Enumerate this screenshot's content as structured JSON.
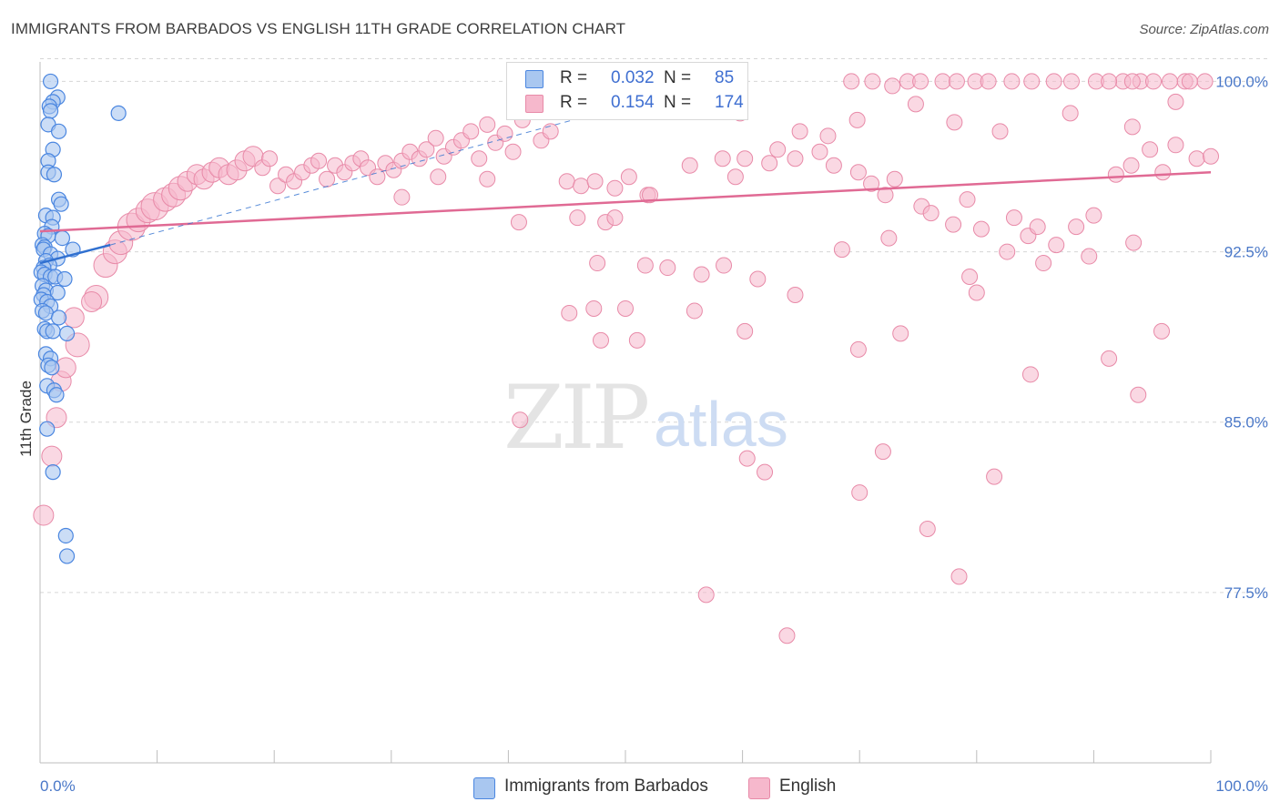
{
  "title": "IMMIGRANTS FROM BARBADOS VS ENGLISH 11TH GRADE CORRELATION CHART",
  "source": "Source: ZipAtlas.com",
  "watermark": {
    "zip": "ZIP",
    "atlas": "atlas"
  },
  "legend_top": {
    "rows": [
      {
        "r_label": "R =",
        "r_value": "0.032",
        "n_label": "N =",
        "n_value": "85"
      },
      {
        "r_label": "R =",
        "r_value": "0.154",
        "n_label": "N =",
        "n_value": "174"
      }
    ]
  },
  "legend_bottom": {
    "series1": "Immigrants from Barbados",
    "series2": "English"
  },
  "colors": {
    "blue_fill": "#a9c7f0",
    "blue_edge": "#4a86e0",
    "blue_line": "#3070d0",
    "pink_fill": "#f6b8cc",
    "pink_edge": "#e88aa8",
    "pink_line": "#e06a94",
    "tick_text": "#4a78c8",
    "grid": "#d6d6d6"
  },
  "chart_data": {
    "type": "scatter",
    "title": "IMMIGRANTS FROM BARBADOS VS ENGLISH 11TH GRADE CORRELATION CHART",
    "xlabel": "",
    "ylabel": "11th Grade",
    "xlim": [
      0,
      100
    ],
    "ylim": [
      70,
      101.5
    ],
    "x_tick_labels": [
      "0.0%",
      "100.0%"
    ],
    "y_ticks": [
      77.5,
      85.0,
      92.5,
      100.0
    ],
    "y_tick_labels": [
      "77.5%",
      "85.0%",
      "92.5%",
      "100.0%"
    ],
    "grid": "horizontal dashed",
    "series": [
      {
        "name": "Immigrants from Barbados",
        "R": 0.032,
        "N": 85,
        "trend": {
          "x0": 0,
          "y0": 92.0,
          "x1": 6,
          "y1": 92.8
        },
        "trend_extended": {
          "x0": 6,
          "y0": 92.8,
          "x1": 57,
          "y1": 99.9
        },
        "points": [
          [
            0.9,
            100.0
          ],
          [
            1.5,
            99.3
          ],
          [
            1.1,
            99.1
          ],
          [
            0.8,
            98.9
          ],
          [
            0.9,
            98.7
          ],
          [
            6.7,
            98.6
          ],
          [
            0.7,
            98.1
          ],
          [
            1.6,
            97.8
          ],
          [
            1.1,
            97.0
          ],
          [
            0.7,
            96.5
          ],
          [
            0.7,
            96.0
          ],
          [
            1.2,
            95.9
          ],
          [
            1.6,
            94.8
          ],
          [
            1.8,
            94.6
          ],
          [
            0.5,
            94.1
          ],
          [
            1.1,
            94.0
          ],
          [
            1.0,
            93.6
          ],
          [
            0.4,
            93.3
          ],
          [
            0.7,
            93.2
          ],
          [
            1.9,
            93.1
          ],
          [
            0.2,
            92.8
          ],
          [
            0.4,
            92.7
          ],
          [
            0.3,
            92.6
          ],
          [
            2.8,
            92.6
          ],
          [
            0.9,
            92.4
          ],
          [
            1.5,
            92.2
          ],
          [
            0.5,
            92.1
          ],
          [
            0.8,
            91.9
          ],
          [
            0.3,
            91.8
          ],
          [
            0.1,
            91.6
          ],
          [
            0.4,
            91.5
          ],
          [
            0.9,
            91.4
          ],
          [
            1.3,
            91.4
          ],
          [
            2.1,
            91.3
          ],
          [
            0.2,
            91.0
          ],
          [
            0.5,
            90.8
          ],
          [
            1.5,
            90.7
          ],
          [
            0.3,
            90.6
          ],
          [
            0.1,
            90.4
          ],
          [
            0.6,
            90.3
          ],
          [
            0.9,
            90.1
          ],
          [
            0.2,
            89.9
          ],
          [
            0.5,
            89.8
          ],
          [
            1.6,
            89.6
          ],
          [
            0.4,
            89.1
          ],
          [
            0.6,
            89.0
          ],
          [
            1.1,
            89.0
          ],
          [
            2.3,
            88.9
          ],
          [
            0.5,
            88.0
          ],
          [
            0.9,
            87.8
          ],
          [
            0.7,
            87.5
          ],
          [
            1.0,
            87.4
          ],
          [
            0.6,
            86.6
          ],
          [
            1.2,
            86.4
          ],
          [
            1.4,
            86.2
          ],
          [
            0.6,
            84.7
          ],
          [
            1.1,
            82.8
          ],
          [
            2.2,
            80.0
          ],
          [
            2.3,
            79.1
          ]
        ]
      },
      {
        "name": "English",
        "R": 0.154,
        "N": 174,
        "trend": {
          "x0": 0,
          "y0": 93.4,
          "x1": 100,
          "y1": 96.0
        },
        "points": [
          [
            0.3,
            80.9,
            2
          ],
          [
            1.0,
            83.5,
            2
          ],
          [
            1.4,
            85.2,
            2
          ],
          [
            1.8,
            86.8,
            2
          ],
          [
            2.2,
            87.4,
            2
          ],
          [
            3.2,
            88.4,
            3
          ],
          [
            2.9,
            89.6,
            2
          ],
          [
            4.8,
            90.5,
            3
          ],
          [
            4.4,
            90.3,
            2
          ],
          [
            5.6,
            91.9,
            3
          ],
          [
            6.4,
            92.5,
            3
          ],
          [
            6.9,
            92.9,
            3
          ],
          [
            7.8,
            93.6,
            4
          ],
          [
            8.4,
            93.9,
            3
          ],
          [
            9.2,
            94.3,
            3
          ],
          [
            9.8,
            94.5,
            4
          ],
          [
            10.7,
            94.8,
            3
          ],
          [
            11.4,
            95.0,
            3
          ],
          [
            12.0,
            95.3,
            3
          ],
          [
            12.6,
            95.6,
            2
          ],
          [
            13.4,
            95.9,
            2
          ],
          [
            14.0,
            95.7,
            2
          ],
          [
            14.7,
            96.0,
            2
          ],
          [
            15.3,
            96.2,
            2
          ],
          [
            16.1,
            95.9,
            2
          ],
          [
            16.8,
            96.1,
            2
          ],
          [
            17.5,
            96.5,
            2
          ],
          [
            18.2,
            96.7,
            2
          ],
          [
            19.0,
            96.2,
            1
          ],
          [
            19.6,
            96.6,
            1
          ],
          [
            20.3,
            95.4,
            1
          ],
          [
            21.0,
            95.9,
            1
          ],
          [
            21.7,
            95.6,
            1
          ],
          [
            22.4,
            96.0,
            1
          ],
          [
            23.2,
            96.3,
            1
          ],
          [
            23.8,
            96.5,
            1
          ],
          [
            24.5,
            95.7,
            1
          ],
          [
            25.2,
            96.3,
            1
          ],
          [
            26.0,
            96.0,
            1
          ],
          [
            26.7,
            96.4,
            1
          ],
          [
            27.4,
            96.6,
            1
          ],
          [
            28.0,
            96.2,
            1
          ],
          [
            28.8,
            95.8,
            1
          ],
          [
            29.5,
            96.4,
            1
          ],
          [
            30.2,
            96.1,
            1
          ],
          [
            30.9,
            96.5,
            1
          ],
          [
            31.6,
            96.9,
            1
          ],
          [
            32.4,
            96.6,
            1
          ],
          [
            33.0,
            97.0,
            1
          ],
          [
            33.8,
            97.5,
            1
          ],
          [
            34.5,
            96.7,
            1
          ],
          [
            35.3,
            97.1,
            1
          ],
          [
            36.0,
            97.4,
            1
          ],
          [
            36.8,
            97.8,
            1
          ],
          [
            37.5,
            96.6,
            1
          ],
          [
            38.2,
            98.1,
            1
          ],
          [
            38.9,
            97.3,
            1
          ],
          [
            39.7,
            97.7,
            1
          ],
          [
            40.4,
            96.9,
            1
          ],
          [
            41.2,
            98.3,
            1
          ],
          [
            42.0,
            98.8,
            1
          ],
          [
            42.8,
            97.4,
            1
          ],
          [
            43.6,
            97.8,
            1
          ],
          [
            34.0,
            95.8,
            1
          ],
          [
            30.9,
            94.9,
            1
          ],
          [
            38.2,
            95.7,
            1
          ],
          [
            45.0,
            95.6,
            1
          ],
          [
            46.2,
            95.4,
            1
          ],
          [
            47.4,
            95.6,
            1
          ],
          [
            49.1,
            95.3,
            1
          ],
          [
            50.3,
            95.8,
            1
          ],
          [
            51.9,
            95.0,
            1
          ],
          [
            40.9,
            93.8,
            1
          ],
          [
            45.9,
            94.0,
            1
          ],
          [
            48.3,
            93.8,
            1
          ],
          [
            49.1,
            94.0,
            1
          ],
          [
            52.1,
            95.0,
            1
          ],
          [
            55.5,
            96.3,
            1
          ],
          [
            58.3,
            96.6,
            1
          ],
          [
            59.4,
            95.8,
            1
          ],
          [
            60.2,
            96.6,
            1
          ],
          [
            62.3,
            96.4,
            1
          ],
          [
            63.0,
            97.0,
            1
          ],
          [
            64.5,
            96.6,
            1
          ],
          [
            66.6,
            96.9,
            1
          ],
          [
            67.8,
            96.3,
            1
          ],
          [
            69.9,
            96.0,
            1
          ],
          [
            71.0,
            95.5,
            1
          ],
          [
            72.2,
            95.0,
            1
          ],
          [
            73.0,
            95.7,
            1
          ],
          [
            75.3,
            94.5,
            1
          ],
          [
            76.1,
            94.2,
            1
          ],
          [
            78.0,
            93.7,
            1
          ],
          [
            79.2,
            94.8,
            1
          ],
          [
            80.4,
            93.5,
            1
          ],
          [
            83.2,
            94.0,
            1
          ],
          [
            84.4,
            93.2,
            1
          ],
          [
            85.2,
            93.6,
            1
          ],
          [
            86.8,
            92.8,
            1
          ],
          [
            88.5,
            93.6,
            1
          ],
          [
            90.0,
            94.1,
            1
          ],
          [
            91.9,
            95.9,
            1
          ],
          [
            93.2,
            96.3,
            1
          ],
          [
            94.8,
            97.0,
            1
          ],
          [
            95.9,
            96.0,
            1
          ],
          [
            97.0,
            97.2,
            1
          ],
          [
            98.8,
            96.6,
            1
          ],
          [
            100.0,
            96.7,
            1
          ],
          [
            69.3,
            100.0,
            1
          ],
          [
            71.1,
            100.0,
            1
          ],
          [
            74.1,
            100.0,
            1
          ],
          [
            75.2,
            100.0,
            1
          ],
          [
            77.1,
            100.0,
            1
          ],
          [
            78.3,
            100.0,
            1
          ],
          [
            79.9,
            100.0,
            1
          ],
          [
            84.7,
            100.0,
            1
          ],
          [
            86.6,
            100.0,
            1
          ],
          [
            88.1,
            100.0,
            1
          ],
          [
            90.2,
            100.0,
            1
          ],
          [
            92.5,
            100.0,
            1
          ],
          [
            94.0,
            100.0,
            1
          ],
          [
            96.5,
            100.0,
            1
          ],
          [
            97.8,
            100.0,
            1
          ],
          [
            99.5,
            100.0,
            1
          ],
          [
            83.0,
            100.0,
            1
          ],
          [
            81.0,
            100.0,
            1
          ],
          [
            72.8,
            99.8,
            1
          ],
          [
            91.3,
            100.0,
            1
          ],
          [
            93.3,
            100.0,
            1
          ],
          [
            95.1,
            100.0,
            1
          ],
          [
            98.2,
            100.0,
            1
          ],
          [
            59.8,
            98.6,
            1
          ],
          [
            69.8,
            98.3,
            1
          ],
          [
            64.9,
            97.8,
            1
          ],
          [
            67.3,
            97.6,
            1
          ],
          [
            74.8,
            99.0,
            1
          ],
          [
            78.1,
            98.2,
            1
          ],
          [
            82.0,
            97.8,
            1
          ],
          [
            88.0,
            98.6,
            1
          ],
          [
            93.3,
            98.0,
            1
          ],
          [
            97.0,
            99.1,
            1
          ],
          [
            47.6,
            92.0,
            1
          ],
          [
            51.7,
            91.9,
            1
          ],
          [
            53.6,
            91.8,
            1
          ],
          [
            56.5,
            91.5,
            1
          ],
          [
            58.4,
            91.9,
            1
          ],
          [
            61.3,
            91.3,
            1
          ],
          [
            64.5,
            90.6,
            1
          ],
          [
            68.5,
            92.6,
            1
          ],
          [
            72.5,
            93.1,
            1
          ],
          [
            79.4,
            91.4,
            1
          ],
          [
            82.6,
            92.5,
            1
          ],
          [
            85.7,
            92.0,
            1
          ],
          [
            89.6,
            92.3,
            1
          ],
          [
            93.4,
            92.9,
            1
          ],
          [
            45.2,
            89.8,
            1
          ],
          [
            47.3,
            90.0,
            1
          ],
          [
            50.0,
            90.0,
            1
          ],
          [
            55.9,
            89.9,
            1
          ],
          [
            47.9,
            88.6,
            1
          ],
          [
            51.0,
            88.6,
            1
          ],
          [
            60.2,
            89.0,
            1
          ],
          [
            69.9,
            88.2,
            1
          ],
          [
            73.5,
            88.9,
            1
          ],
          [
            80.0,
            90.7,
            1
          ],
          [
            84.6,
            87.1,
            1
          ],
          [
            91.3,
            87.8,
            1
          ],
          [
            93.8,
            86.2,
            1
          ],
          [
            95.8,
            89.0,
            1
          ],
          [
            41.0,
            85.1,
            1
          ],
          [
            61.9,
            82.8,
            1
          ],
          [
            70.0,
            81.9,
            1
          ],
          [
            75.8,
            80.3,
            1
          ],
          [
            78.5,
            78.2,
            1
          ],
          [
            56.9,
            77.4,
            1
          ],
          [
            81.5,
            82.6,
            1
          ],
          [
            63.8,
            75.6,
            1
          ],
          [
            60.4,
            83.4,
            1
          ],
          [
            72.0,
            83.7,
            1
          ]
        ]
      }
    ]
  }
}
